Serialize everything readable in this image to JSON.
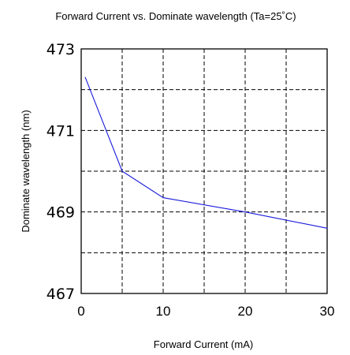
{
  "chart_data": {
    "type": "line",
    "title": "Forward Current vs. Dominate wavelength (Ta=25˚C)",
    "xlabel": "Forward   Current (mA)",
    "ylabel": "Dominate wavelength (nm)",
    "xlim": [
      0,
      30
    ],
    "ylim": [
      467,
      473
    ],
    "xticks": [
      0,
      10,
      20,
      30
    ],
    "yticks": [
      467,
      469,
      471,
      473
    ],
    "xgrid": [
      5,
      10,
      15,
      20,
      25
    ],
    "ygrid": [
      468,
      469,
      470,
      471,
      472
    ],
    "grid": true,
    "series": [
      {
        "color": "#1a1adc",
        "x": [
          0.5,
          5,
          10,
          20,
          30
        ],
        "y": [
          472.3,
          470.0,
          469.35,
          469.0,
          468.6
        ]
      }
    ]
  }
}
